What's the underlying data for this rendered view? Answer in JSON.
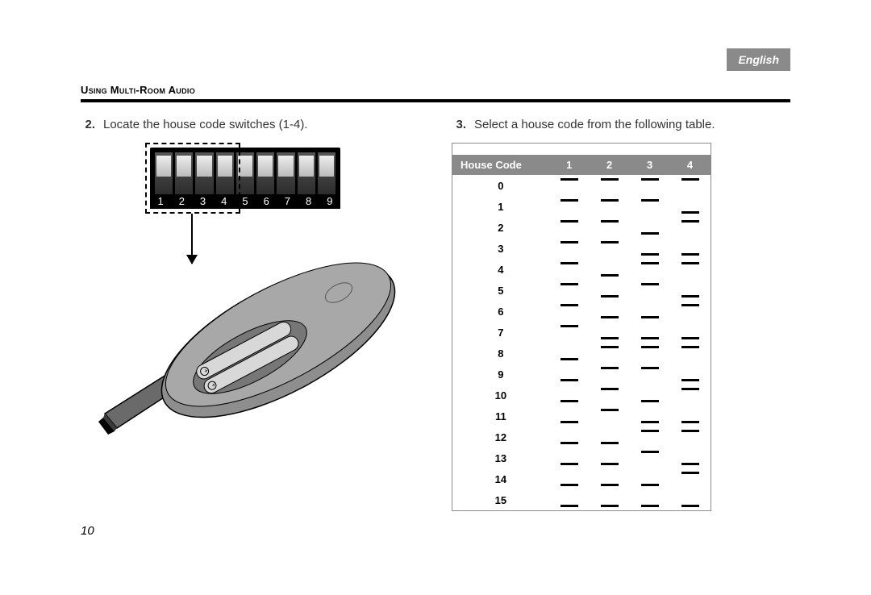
{
  "language_tab": "English",
  "section_title": "Using Multi-Room Audio",
  "page_number": "10",
  "left": {
    "step_num": "2.",
    "step_text": "Locate the house code switches (1-4).",
    "dip_switch": {
      "count": 9,
      "labels": [
        "1",
        "2",
        "3",
        "4",
        "5",
        "6",
        "7",
        "8",
        "9"
      ],
      "highlight_range": [
        1,
        4
      ],
      "body_color": "#000000",
      "knob_color": "#dddddd",
      "label_color": "#ffffff"
    }
  },
  "right": {
    "step_num": "3.",
    "step_text": "Select a house code from the following table.",
    "table": {
      "header_bg": "#8a8a8a",
      "header_fg": "#ffffff",
      "label": "House Code",
      "switch_headers": [
        "1",
        "2",
        "3",
        "4"
      ],
      "rows": [
        {
          "code": "0",
          "sw": [
            "up",
            "up",
            "up",
            "up"
          ]
        },
        {
          "code": "1",
          "sw": [
            "up",
            "up",
            "up",
            "down"
          ]
        },
        {
          "code": "2",
          "sw": [
            "up",
            "up",
            "down",
            "up"
          ]
        },
        {
          "code": "3",
          "sw": [
            "up",
            "up",
            "down",
            "down"
          ]
        },
        {
          "code": "4",
          "sw": [
            "up",
            "down",
            "up",
            "up"
          ]
        },
        {
          "code": "5",
          "sw": [
            "up",
            "down",
            "up",
            "down"
          ]
        },
        {
          "code": "6",
          "sw": [
            "up",
            "down",
            "down",
            "up"
          ]
        },
        {
          "code": "7",
          "sw": [
            "up",
            "down",
            "down",
            "down"
          ]
        },
        {
          "code": "8",
          "sw": [
            "down",
            "up",
            "up",
            "up"
          ]
        },
        {
          "code": "9",
          "sw": [
            "down",
            "up",
            "up",
            "down"
          ]
        },
        {
          "code": "10",
          "sw": [
            "down",
            "up",
            "down",
            "up"
          ]
        },
        {
          "code": "11",
          "sw": [
            "down",
            "up",
            "down",
            "down"
          ]
        },
        {
          "code": "12",
          "sw": [
            "down",
            "down",
            "up",
            "up"
          ]
        },
        {
          "code": "13",
          "sw": [
            "down",
            "down",
            "up",
            "down"
          ]
        },
        {
          "code": "14",
          "sw": [
            "down",
            "down",
            "down",
            "up"
          ]
        },
        {
          "code": "15",
          "sw": [
            "down",
            "down",
            "down",
            "down"
          ]
        }
      ]
    }
  },
  "colors": {
    "page_bg": "#ffffff",
    "text": "#333333",
    "rule": "#000000",
    "gray": "#8a8a8a"
  }
}
